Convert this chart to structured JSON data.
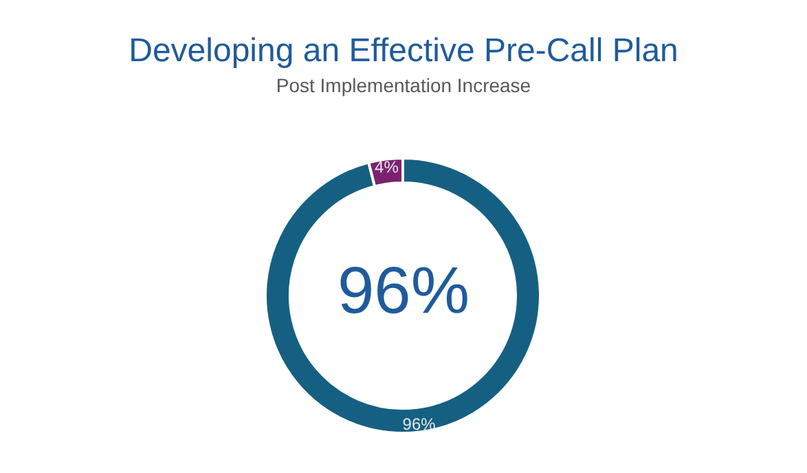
{
  "chart_data": {
    "type": "donut",
    "title": "Developing an Effective Pre-Call Plan",
    "subtitle": "Post Implementation Increase",
    "categories": [
      null,
      null
    ],
    "values": [
      96,
      4
    ],
    "colors": [
      "#156082",
      "#7a2270"
    ],
    "value_labels": [
      "96%",
      "4%"
    ],
    "annotations": [
      "96%"
    ]
  }
}
